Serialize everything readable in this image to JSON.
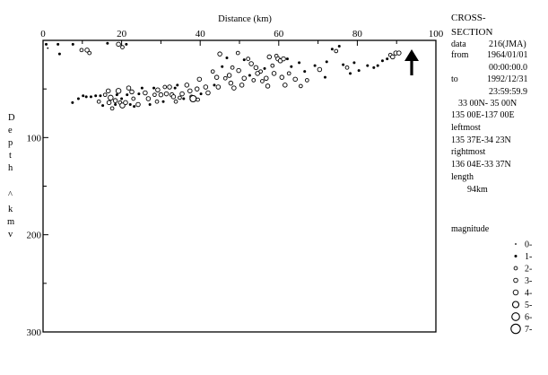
{
  "chart_data": {
    "type": "scatter",
    "title": "",
    "xlabel": "Distance (km)",
    "ylabel_chars": [
      "D",
      "e",
      "p",
      "t",
      "h",
      "^",
      "k",
      "m",
      "v"
    ],
    "xlim": [
      0,
      100
    ],
    "ylim": [
      0,
      300
    ],
    "y_inverted": true,
    "x_major_ticks": [
      0,
      20,
      40,
      60,
      80,
      100
    ],
    "y_major_ticks": [
      100,
      200,
      300
    ],
    "x_tick_labels": [
      "0",
      "20",
      "40",
      "60",
      "80",
      "100"
    ],
    "y_tick_labels": [
      "100",
      "200",
      "300"
    ],
    "grid": false,
    "arrow_at_distance": 94,
    "points": [
      {
        "x": 0.8,
        "y": 4,
        "m": 1
      },
      {
        "x": 1.2,
        "y": 8,
        "m": 0
      },
      {
        "x": 3.8,
        "y": 4,
        "m": 1
      },
      {
        "x": 4.2,
        "y": 14,
        "m": 1
      },
      {
        "x": 7.6,
        "y": 4,
        "m": 1
      },
      {
        "x": 9.8,
        "y": 10,
        "m": 2
      },
      {
        "x": 11.2,
        "y": 10,
        "m": 3
      },
      {
        "x": 11.8,
        "y": 13,
        "m": 2
      },
      {
        "x": 16.4,
        "y": 3,
        "m": 1
      },
      {
        "x": 19.2,
        "y": 4,
        "m": 3
      },
      {
        "x": 20.2,
        "y": 7,
        "m": 2
      },
      {
        "x": 21.2,
        "y": 4,
        "m": 1
      },
      {
        "x": 7.5,
        "y": 64,
        "m": 1
      },
      {
        "x": 9,
        "y": 60,
        "m": 1
      },
      {
        "x": 10.2,
        "y": 57,
        "m": 1
      },
      {
        "x": 11,
        "y": 58,
        "m": 1
      },
      {
        "x": 12.2,
        "y": 58,
        "m": 1
      },
      {
        "x": 13.4,
        "y": 57,
        "m": 1
      },
      {
        "x": 14.2,
        "y": 63,
        "m": 2
      },
      {
        "x": 15.2,
        "y": 67,
        "m": 1
      },
      {
        "x": 14.6,
        "y": 57,
        "m": 1
      },
      {
        "x": 15.8,
        "y": 56,
        "m": 2
      },
      {
        "x": 16.6,
        "y": 52,
        "m": 3
      },
      {
        "x": 16.8,
        "y": 64,
        "m": 3
      },
      {
        "x": 17.2,
        "y": 59,
        "m": 4
      },
      {
        "x": 17.6,
        "y": 70,
        "m": 2
      },
      {
        "x": 18.4,
        "y": 62,
        "m": 3
      },
      {
        "x": 18.4,
        "y": 66,
        "m": 1
      },
      {
        "x": 18.8,
        "y": 56,
        "m": 1
      },
      {
        "x": 19.2,
        "y": 52,
        "m": 4
      },
      {
        "x": 19.6,
        "y": 64,
        "m": 2
      },
      {
        "x": 20,
        "y": 60,
        "m": 1
      },
      {
        "x": 20.2,
        "y": 67,
        "m": 4
      },
      {
        "x": 21,
        "y": 64,
        "m": 3
      },
      {
        "x": 21.4,
        "y": 56,
        "m": 1
      },
      {
        "x": 21.8,
        "y": 49,
        "m": 3
      },
      {
        "x": 22.2,
        "y": 66,
        "m": 1
      },
      {
        "x": 22.6,
        "y": 53,
        "m": 3
      },
      {
        "x": 23,
        "y": 60,
        "m": 2
      },
      {
        "x": 23.2,
        "y": 68,
        "m": 1
      },
      {
        "x": 24.4,
        "y": 55,
        "m": 1
      },
      {
        "x": 24.2,
        "y": 66,
        "m": 3
      },
      {
        "x": 25.2,
        "y": 49,
        "m": 1
      },
      {
        "x": 26,
        "y": 54,
        "m": 3
      },
      {
        "x": 26.8,
        "y": 60,
        "m": 3
      },
      {
        "x": 27.2,
        "y": 66,
        "m": 1
      },
      {
        "x": 28.2,
        "y": 49,
        "m": 1
      },
      {
        "x": 28.4,
        "y": 56,
        "m": 2
      },
      {
        "x": 29,
        "y": 63,
        "m": 2
      },
      {
        "x": 29.2,
        "y": 51,
        "m": 3
      },
      {
        "x": 30,
        "y": 56,
        "m": 3
      },
      {
        "x": 30.6,
        "y": 63,
        "m": 1
      },
      {
        "x": 31,
        "y": 48,
        "m": 2
      },
      {
        "x": 31.4,
        "y": 55,
        "m": 3
      },
      {
        "x": 32.2,
        "y": 48,
        "m": 3
      },
      {
        "x": 32.8,
        "y": 56,
        "m": 3
      },
      {
        "x": 33.2,
        "y": 58,
        "m": 3
      },
      {
        "x": 33.6,
        "y": 49,
        "m": 1
      },
      {
        "x": 33.8,
        "y": 63,
        "m": 2
      },
      {
        "x": 34.2,
        "y": 46,
        "m": 1
      },
      {
        "x": 34.8,
        "y": 59,
        "m": 2
      },
      {
        "x": 35.4,
        "y": 55,
        "m": 3
      },
      {
        "x": 35.8,
        "y": 60,
        "m": 1
      },
      {
        "x": 36.6,
        "y": 46,
        "m": 3
      },
      {
        "x": 37.4,
        "y": 52,
        "m": 3
      },
      {
        "x": 37.8,
        "y": 58,
        "m": 2
      },
      {
        "x": 38.2,
        "y": 60,
        "m": 5
      },
      {
        "x": 39.2,
        "y": 50,
        "m": 3
      },
      {
        "x": 39.4,
        "y": 61,
        "m": 2
      },
      {
        "x": 39.8,
        "y": 40,
        "m": 3
      },
      {
        "x": 40.2,
        "y": 55,
        "m": 1
      },
      {
        "x": 41.4,
        "y": 48,
        "m": 3
      },
      {
        "x": 42,
        "y": 54,
        "m": 3
      },
      {
        "x": 43.2,
        "y": 32,
        "m": 2
      },
      {
        "x": 43.6,
        "y": 46,
        "m": 1
      },
      {
        "x": 44.2,
        "y": 38,
        "m": 3
      },
      {
        "x": 44.6,
        "y": 48,
        "m": 3
      },
      {
        "x": 45,
        "y": 14,
        "m": 3
      },
      {
        "x": 45.6,
        "y": 27,
        "m": 1
      },
      {
        "x": 46.4,
        "y": 39,
        "m": 2
      },
      {
        "x": 46.8,
        "y": 18,
        "m": 1
      },
      {
        "x": 47.4,
        "y": 36,
        "m": 3
      },
      {
        "x": 47.8,
        "y": 44,
        "m": 3
      },
      {
        "x": 48.2,
        "y": 28,
        "m": 2
      },
      {
        "x": 48.6,
        "y": 49,
        "m": 3
      },
      {
        "x": 49.6,
        "y": 13,
        "m": 2
      },
      {
        "x": 49.8,
        "y": 31,
        "m": 3
      },
      {
        "x": 50.6,
        "y": 46,
        "m": 3
      },
      {
        "x": 51.2,
        "y": 20,
        "m": 1
      },
      {
        "x": 51.2,
        "y": 39,
        "m": 3
      },
      {
        "x": 52.2,
        "y": 19,
        "m": 2
      },
      {
        "x": 52.6,
        "y": 36,
        "m": 1
      },
      {
        "x": 53,
        "y": 24,
        "m": 3
      },
      {
        "x": 53.6,
        "y": 41,
        "m": 2
      },
      {
        "x": 54.2,
        "y": 28,
        "m": 3
      },
      {
        "x": 54.6,
        "y": 34,
        "m": 3
      },
      {
        "x": 55.4,
        "y": 32,
        "m": 2
      },
      {
        "x": 55.8,
        "y": 42,
        "m": 2
      },
      {
        "x": 56.4,
        "y": 29,
        "m": 1
      },
      {
        "x": 56.8,
        "y": 39,
        "m": 3
      },
      {
        "x": 57.2,
        "y": 47,
        "m": 3
      },
      {
        "x": 57.6,
        "y": 17,
        "m": 3
      },
      {
        "x": 58.4,
        "y": 26,
        "m": 2
      },
      {
        "x": 58.8,
        "y": 34,
        "m": 3
      },
      {
        "x": 59.4,
        "y": 16,
        "m": 2
      },
      {
        "x": 59.8,
        "y": 19,
        "m": 3
      },
      {
        "x": 60.4,
        "y": 21,
        "m": 3
      },
      {
        "x": 60.8,
        "y": 38,
        "m": 3
      },
      {
        "x": 61.2,
        "y": 19,
        "m": 3
      },
      {
        "x": 61.6,
        "y": 46,
        "m": 3
      },
      {
        "x": 62.2,
        "y": 19,
        "m": 1
      },
      {
        "x": 62.6,
        "y": 34,
        "m": 2
      },
      {
        "x": 63.2,
        "y": 27,
        "m": 1
      },
      {
        "x": 64.2,
        "y": 40,
        "m": 3
      },
      {
        "x": 65.2,
        "y": 23,
        "m": 1
      },
      {
        "x": 65.6,
        "y": 47,
        "m": 2
      },
      {
        "x": 66.6,
        "y": 32,
        "m": 1
      },
      {
        "x": 67.2,
        "y": 41,
        "m": 2
      },
      {
        "x": 69.2,
        "y": 26,
        "m": 1
      },
      {
        "x": 70.4,
        "y": 30,
        "m": 3
      },
      {
        "x": 71.8,
        "y": 38,
        "m": 1
      },
      {
        "x": 72.2,
        "y": 22,
        "m": 1
      },
      {
        "x": 73.6,
        "y": 9,
        "m": 1
      },
      {
        "x": 74.6,
        "y": 11,
        "m": 2
      },
      {
        "x": 75.4,
        "y": 6,
        "m": 1
      },
      {
        "x": 76.4,
        "y": 25,
        "m": 1
      },
      {
        "x": 77.4,
        "y": 28,
        "m": 2
      },
      {
        "x": 78.2,
        "y": 34,
        "m": 1
      },
      {
        "x": 79.2,
        "y": 23,
        "m": 1
      },
      {
        "x": 80.4,
        "y": 31,
        "m": 1
      },
      {
        "x": 82.6,
        "y": 26,
        "m": 1
      },
      {
        "x": 84.2,
        "y": 28,
        "m": 1
      },
      {
        "x": 85.2,
        "y": 26,
        "m": 1
      },
      {
        "x": 86.4,
        "y": 21,
        "m": 1
      },
      {
        "x": 87.6,
        "y": 19,
        "m": 1
      },
      {
        "x": 88.4,
        "y": 15,
        "m": 2
      },
      {
        "x": 89,
        "y": 17,
        "m": 3
      },
      {
        "x": 89.8,
        "y": 13,
        "m": 3
      },
      {
        "x": 90.6,
        "y": 13,
        "m": 3
      }
    ]
  },
  "info": {
    "title_line1": "CROSS-",
    "title_line2": "SECTION",
    "data_label": "data",
    "data_value": "216(JMA)",
    "from_label": "from",
    "from_date": "1964/01/01",
    "from_time": "00:00:00.0",
    "to_label": "to",
    "to_date": "1992/12/31",
    "to_time": "23:59:59.9",
    "lat_range": "33 00N- 35 00N",
    "lon_range": "135 00E-137 00E",
    "leftmost_label": "leftmost",
    "leftmost_value": "135 37E-34 23N",
    "rightmost_label": "rightmost",
    "rightmost_value": "136 04E-33 37N",
    "length_label": "length",
    "length_value": "94km"
  },
  "legend": {
    "title": "magnitude",
    "items": [
      "0-",
      "1-",
      "2-",
      "3-",
      "4-",
      "5-",
      "6-",
      "7-"
    ]
  }
}
